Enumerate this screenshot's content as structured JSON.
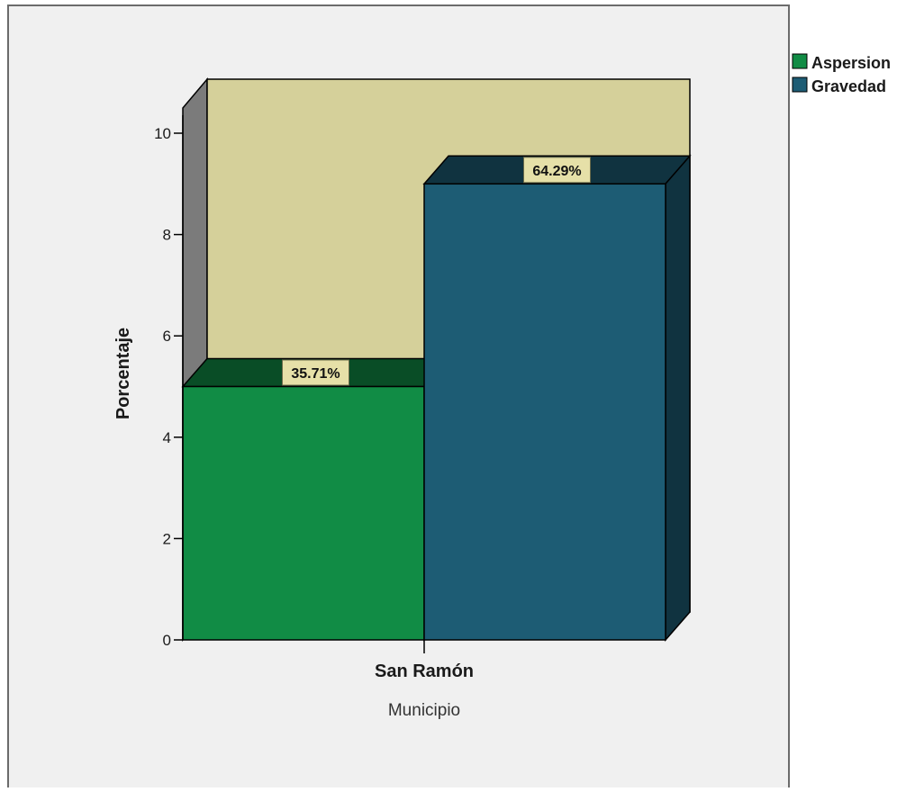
{
  "chart_data": {
    "type": "bar",
    "style": "3d-clustered",
    "title": "",
    "xlabel": "Municipio",
    "ylabel": "Porcentaje",
    "categories": [
      "San Ramón"
    ],
    "series": [
      {
        "name": "Aspersion",
        "values": [
          5
        ],
        "data_label": "35.71%"
      },
      {
        "name": "Gravedad",
        "values": [
          9
        ],
        "data_label": "64.29%"
      }
    ],
    "ylim": [
      0,
      10
    ],
    "yticks": [
      0,
      2,
      4,
      6,
      8,
      10
    ],
    "ytick_labels": [
      "0",
      "2",
      "4",
      "6",
      "8",
      "10"
    ],
    "legend_position": "top-right",
    "grid": false,
    "colors": {
      "Aspersion": "#118c45",
      "Gravedad": "#1d5c74",
      "plot_background": "#d5d09a",
      "panel_background": "#f0f0f0",
      "label_box": "#e6e0a8"
    }
  }
}
